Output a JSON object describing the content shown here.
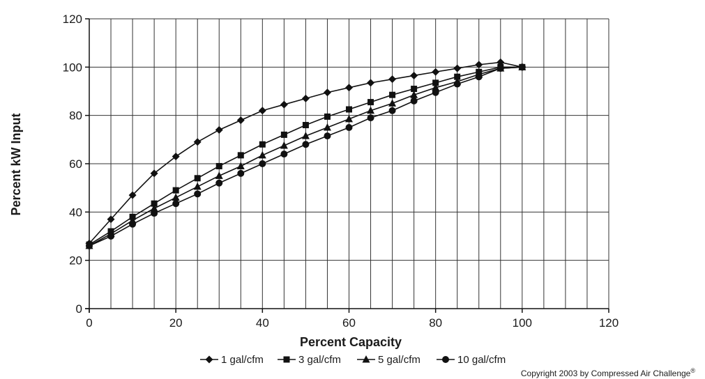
{
  "chart_data": {
    "type": "line",
    "title": "",
    "xlabel": "Percent Capacity",
    "ylabel": "Percent kW Input",
    "xlim": [
      0,
      120
    ],
    "ylim": [
      0,
      120
    ],
    "x_ticks": [
      0,
      20,
      40,
      60,
      80,
      100,
      120
    ],
    "y_ticks": [
      0,
      20,
      40,
      60,
      80,
      100,
      120
    ],
    "grid": true,
    "legend_position": "bottom",
    "x": [
      0,
      5,
      10,
      15,
      20,
      25,
      30,
      35,
      40,
      45,
      50,
      55,
      60,
      65,
      70,
      75,
      80,
      85,
      90,
      95,
      100
    ],
    "series": [
      {
        "name": "1 gal/cfm",
        "marker": "diamond",
        "values": [
          27,
          37,
          47,
          56,
          63,
          69,
          74,
          78,
          82,
          84.5,
          87,
          89.5,
          91.5,
          93.5,
          95,
          96.5,
          98,
          99.5,
          101,
          102,
          100
        ]
      },
      {
        "name": "3 gal/cfm",
        "marker": "square",
        "values": [
          26.5,
          32,
          38,
          43.5,
          49,
          54,
          59,
          63.5,
          68,
          72,
          76,
          79.5,
          82.5,
          85.5,
          88.5,
          91,
          93.5,
          96,
          98,
          100,
          100
        ]
      },
      {
        "name": "5 gal/cfm",
        "marker": "triangle",
        "values": [
          26,
          31,
          36.5,
          41.5,
          46,
          50.5,
          55,
          59,
          63.5,
          67.5,
          71.5,
          75,
          78.5,
          82,
          85,
          88.5,
          91.5,
          94,
          97,
          99.5,
          100
        ]
      },
      {
        "name": "10 gal/cfm",
        "marker": "circle",
        "values": [
          26,
          30,
          35,
          39.5,
          43.5,
          47.5,
          52,
          56,
          60,
          64,
          68,
          71.5,
          75,
          79,
          82,
          86,
          89.5,
          93,
          96,
          99.5,
          100
        ]
      }
    ]
  },
  "copyright": {
    "text": "Copyright 2003 by Compressed Air Challenge",
    "mark": "®"
  }
}
